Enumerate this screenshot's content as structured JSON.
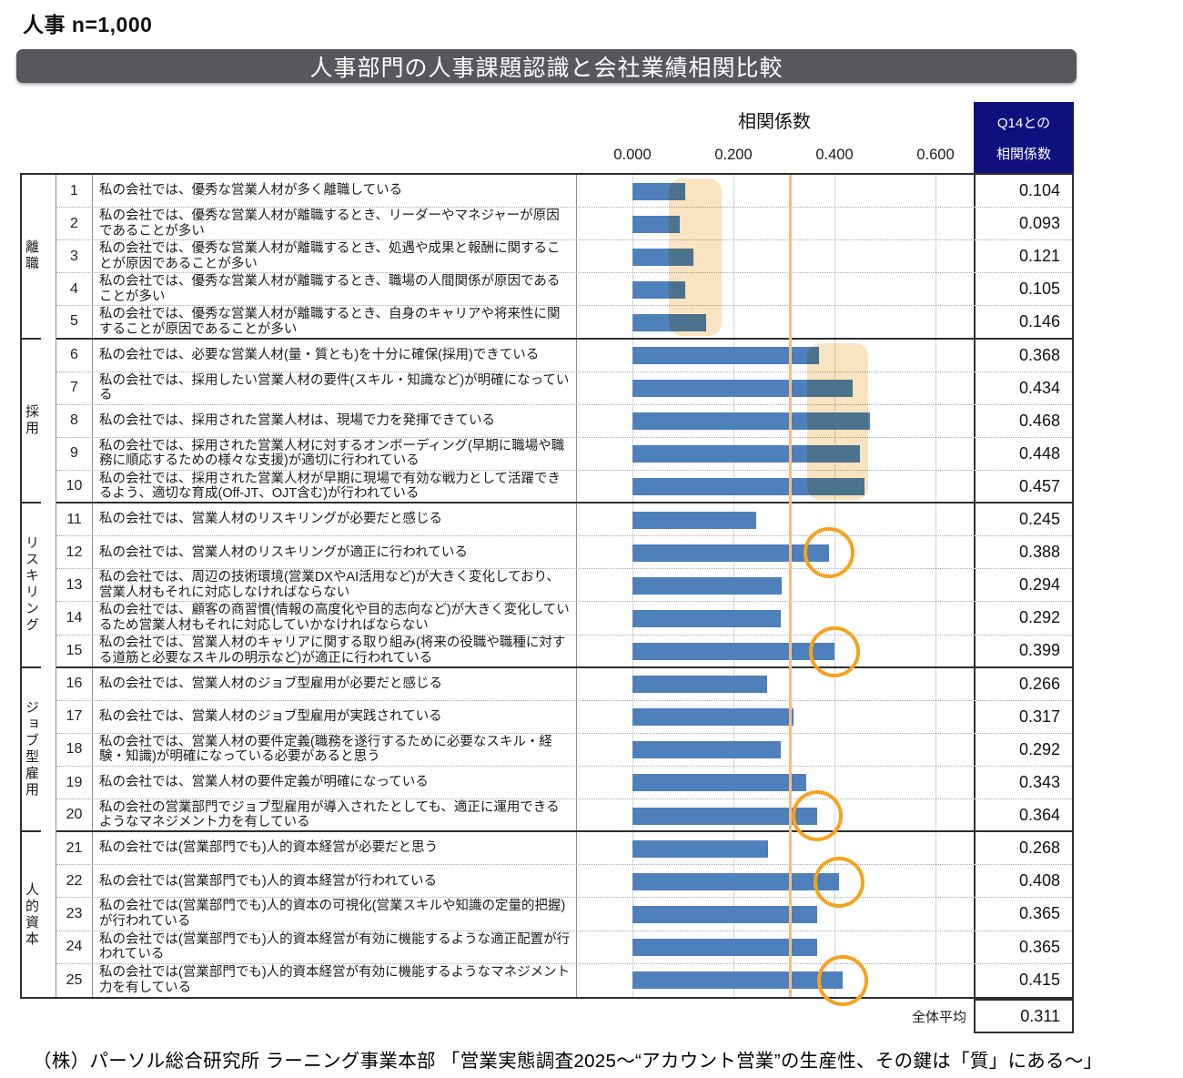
{
  "page": {
    "sample_label": "人事 n=1,000",
    "title": "人事部門の人事課題認識と会社業績相関比較",
    "source_note": "（株）パーソル総合研究所 ラーニング事業本部 「営業実態調査2025～“アカウント営業”の生産性、その鍵は「質」にある～」"
  },
  "header": {
    "axis_title": "相関係数",
    "right_header_line1": "Q14との",
    "right_header_line2": "相関係数"
  },
  "summary": {
    "label": "全体平均",
    "value": 0.311
  },
  "colors": {
    "bar": "#4E80BC",
    "highlight_band": "#FAE3C0",
    "average_line": "#F8BC86",
    "circle": "#F6A21E",
    "title_bar_bg": "#56585D",
    "right_header_bg": "#0D107E"
  },
  "chart_data": {
    "type": "bar",
    "orientation": "horizontal",
    "title": "人事部門の人事課題認識と会社業績相関比較",
    "xlabel": "相関係数",
    "xlim": [
      0,
      0.66
    ],
    "xticks": [
      0.0,
      0.2,
      0.4,
      0.6
    ],
    "xtick_labels": [
      "0.000",
      "0.200",
      "0.400",
      "0.600"
    ],
    "grid": true,
    "average": 0.311,
    "groups": [
      {
        "name": "離職",
        "items": [
          {
            "no": 1,
            "label": "私の会社では、優秀な営業人材が多く離職している",
            "value": 0.104
          },
          {
            "no": 2,
            "label": "私の会社では、優秀な営業人材が離職するとき、リーダーやマネジャーが原因であることが多い",
            "value": 0.093
          },
          {
            "no": 3,
            "label": "私の会社では、優秀な営業人材が離職するとき、処遇や成果と報酬に関することが原因であることが多い",
            "value": 0.121
          },
          {
            "no": 4,
            "label": "私の会社では、優秀な営業人材が離職するとき、職場の人間関係が原因であることが多い",
            "value": 0.105
          },
          {
            "no": 5,
            "label": "私の会社では、優秀な営業人材が離職するとき、自身のキャリアや将来性に関することが原因であることが多い",
            "value": 0.146
          }
        ]
      },
      {
        "name": "採用",
        "items": [
          {
            "no": 6,
            "label": "私の会社では、必要な営業人材(量・質とも)を十分に確保(採用)できている",
            "value": 0.368
          },
          {
            "no": 7,
            "label": "私の会社では、採用したい営業人材の要件(スキル・知識など)が明確になっている",
            "value": 0.434
          },
          {
            "no": 8,
            "label": "私の会社では、採用された営業人材は、現場で力を発揮できている",
            "value": 0.468
          },
          {
            "no": 9,
            "label": "私の会社では、採用された営業人材に対するオンボーディング(早期に職場や職務に順応するための様々な支援)が適切に行われている",
            "value": 0.448
          },
          {
            "no": 10,
            "label": "私の会社では、採用された営業人材が早期に現場で有効な戦力として活躍できるよう、適切な育成(Off-JT、OJT含む)が行われている",
            "value": 0.457
          }
        ]
      },
      {
        "name": "リスキリング",
        "items": [
          {
            "no": 11,
            "label": "私の会社では、営業人材のリスキリングが必要だと感じる",
            "value": 0.245
          },
          {
            "no": 12,
            "label": "私の会社では、営業人材のリスキリングが適正に行われている",
            "value": 0.388
          },
          {
            "no": 13,
            "label": "私の会社では、周辺の技術環境(営業DXやAI活用など)が大きく変化しており、営業人材もそれに対応しなければならない",
            "value": 0.294
          },
          {
            "no": 14,
            "label": "私の会社では、顧客の商習慣(情報の高度化や目的志向など)が大きく変化しているため営業人材もそれに対応していかなければならない",
            "value": 0.292
          },
          {
            "no": 15,
            "label": "私の会社では、営業人材のキャリアに関する取り組み(将来の役職や職種に対する道筋と必要なスキルの明示など)が適正に行われている",
            "value": 0.399
          }
        ]
      },
      {
        "name": "ジョブ型雇用",
        "items": [
          {
            "no": 16,
            "label": "私の会社では、営業人材のジョブ型雇用が必要だと感じる",
            "value": 0.266
          },
          {
            "no": 17,
            "label": "私の会社では、営業人材のジョブ型雇用が実践されている",
            "value": 0.317
          },
          {
            "no": 18,
            "label": "私の会社では、営業人材の要件定義(職務を遂行するために必要なスキル・経験・知識)が明確になっている必要があると思う",
            "value": 0.292
          },
          {
            "no": 19,
            "label": "私の会社では、営業人材の要件定義が明確になっている",
            "value": 0.343
          },
          {
            "no": 20,
            "label": "私の会社の営業部門でジョブ型雇用が導入されたとしても、適正に運用できるようなマネジメント力を有している",
            "value": 0.364
          }
        ]
      },
      {
        "name": "人的資本",
        "items": [
          {
            "no": 21,
            "label": "私の会社では(営業部門でも)人的資本経営が必要だと思う",
            "value": 0.268
          },
          {
            "no": 22,
            "label": "私の会社では(営業部門でも)人的資本経営が行われている",
            "value": 0.408
          },
          {
            "no": 23,
            "label": "私の会社では(営業部門でも)人的資本の可視化(営業スキルや知識の定量的把握)が行われている",
            "value": 0.365
          },
          {
            "no": 24,
            "label": "私の会社では(営業部門でも)人的資本経営が有効に機能するような適正配置が行われている",
            "value": 0.365
          },
          {
            "no": 25,
            "label": "私の会社では(営業部門でも)人的資本経営が有効に機能するようなマネジメント力を有している",
            "value": 0.415
          }
        ]
      }
    ],
    "highlight_ranges": [
      {
        "group_index": 0,
        "from": 0.072,
        "to": 0.176
      },
      {
        "group_index": 1,
        "from": 0.345,
        "to": 0.465
      }
    ],
    "circled_items": [
      12,
      15,
      20,
      22,
      25
    ]
  }
}
